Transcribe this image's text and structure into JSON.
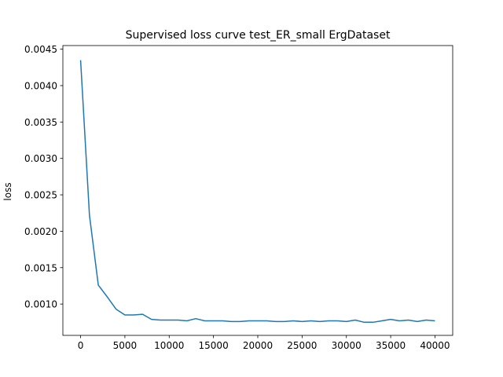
{
  "chart_data": {
    "type": "line",
    "title": "Supervised loss curve test_ER_small ErgDataset",
    "xlabel": "",
    "ylabel": "loss",
    "xlim": [
      -2000,
      42000
    ],
    "ylim": [
      0.00057,
      0.00455
    ],
    "xticks": [
      0,
      5000,
      10000,
      15000,
      20000,
      25000,
      30000,
      35000,
      40000
    ],
    "xtick_labels": [
      "0",
      "5000",
      "10000",
      "15000",
      "20000",
      "25000",
      "30000",
      "35000",
      "40000"
    ],
    "yticks": [
      0.001,
      0.0015,
      0.002,
      0.0025,
      0.003,
      0.0035,
      0.004,
      0.0045
    ],
    "ytick_labels": [
      "0.0010",
      "0.0015",
      "0.0020",
      "0.0025",
      "0.0030",
      "0.0035",
      "0.0040",
      "0.0045"
    ],
    "grid": false,
    "legend": null,
    "series": [
      {
        "color": "#1f77b4",
        "x": [
          0,
          1000,
          2000,
          3000,
          4000,
          5000,
          6000,
          7000,
          8000,
          9000,
          10000,
          11000,
          12000,
          13000,
          14000,
          15000,
          16000,
          17000,
          18000,
          19000,
          20000,
          21000,
          22000,
          23000,
          24000,
          25000,
          26000,
          27000,
          28000,
          29000,
          30000,
          31000,
          32000,
          33000,
          34000,
          35000,
          36000,
          37000,
          38000,
          39000,
          40000
        ],
        "y": [
          0.00435,
          0.00222,
          0.00126,
          0.0011,
          0.00093,
          0.00085,
          0.00085,
          0.00086,
          0.00079,
          0.00078,
          0.00078,
          0.00078,
          0.00077,
          0.0008,
          0.00077,
          0.00077,
          0.00077,
          0.00076,
          0.00076,
          0.00077,
          0.00077,
          0.00077,
          0.00076,
          0.00076,
          0.00077,
          0.00076,
          0.00077,
          0.00076,
          0.00077,
          0.00077,
          0.00076,
          0.00078,
          0.00075,
          0.00075,
          0.00077,
          0.00079,
          0.00077,
          0.00078,
          0.00076,
          0.00078,
          0.00077
        ]
      }
    ]
  }
}
